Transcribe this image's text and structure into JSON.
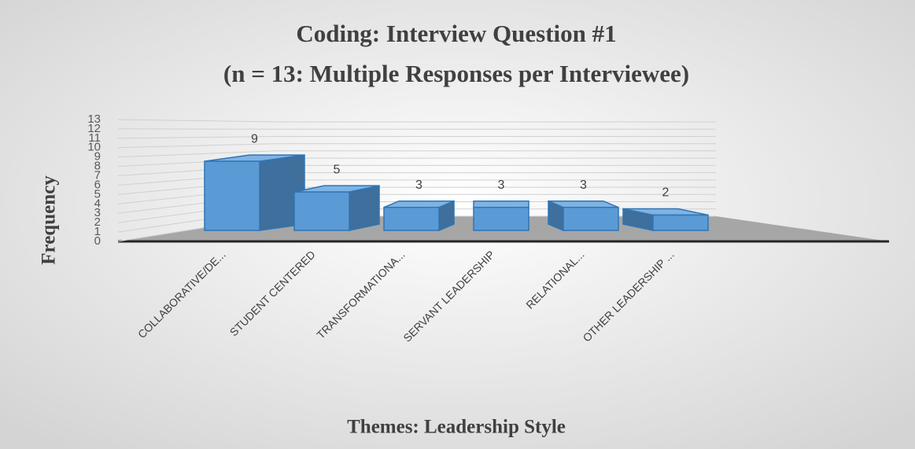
{
  "chart_data": {
    "type": "bar3d",
    "title": [
      "Coding: Interview Question #1",
      "(n = 13: Multiple Responses per Interviewee)"
    ],
    "x_label": "Themes: Leadership Style",
    "y_label": "Frequency",
    "categories": [
      "COLLABORATIVE/DE...",
      "STUDENT CENTERED",
      "TRANSFORMATIONA...",
      "SERVANT LEADERSHIP",
      "RELATIONAL...",
      "OTHER LEADERSHIP ..."
    ],
    "values": [
      9,
      5,
      3,
      3,
      3,
      2
    ],
    "color": "#5b9bd5",
    "ylim": [
      0,
      13
    ],
    "yticks": [
      0,
      1,
      2,
      3,
      4,
      5,
      6,
      7,
      8,
      9,
      10,
      11,
      12,
      13
    ],
    "grid": true
  }
}
